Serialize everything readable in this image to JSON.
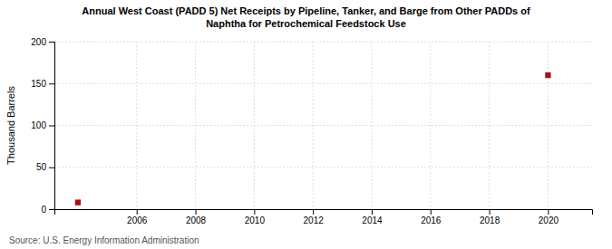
{
  "chart_data": {
    "type": "scatter",
    "title": "Annual West Coast (PADD 5) Net Receipts by Pipeline, Tanker, and Barge from Other PADDs of\nNaphtha for Petrochemical Feedstock Use",
    "ylabel": "Thousand Barrels",
    "source": "Source: U.S. Energy Information Administration",
    "x": [
      2004,
      2020
    ],
    "y": [
      8,
      160
    ],
    "color": "#aa1111",
    "marker": "square",
    "xlim": [
      2003.2,
      2021.5
    ],
    "ylim": [
      0,
      200
    ],
    "xticks": [
      2006,
      2008,
      2010,
      2012,
      2014,
      2016,
      2018,
      2020
    ],
    "yticks": [
      0,
      50,
      100,
      150,
      200
    ],
    "grid": true
  }
}
